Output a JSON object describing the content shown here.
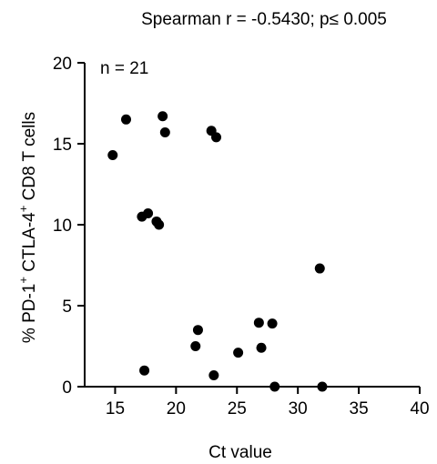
{
  "chart_data": {
    "type": "scatter",
    "title": "Spearman r = -0.5430; p≤ 0.005",
    "annotation": "n = 21",
    "xlabel": "Ct value",
    "ylabel": {
      "p1": "% PD-1",
      "sup1": "+",
      "p2": " CTLA-4",
      "sup2": "+",
      "p3": " CD8 T cells"
    },
    "xlim": [
      12.5,
      40
    ],
    "ylim": [
      0,
      20
    ],
    "x_ticks": [
      15,
      20,
      25,
      30,
      35,
      40
    ],
    "x_tick_labels": [
      "15",
      "20",
      "25",
      "30",
      "35",
      "40"
    ],
    "y_ticks": [
      0,
      5,
      10,
      15,
      20
    ],
    "y_tick_labels": [
      "0",
      "5",
      "10",
      "15",
      "20"
    ],
    "grid": false,
    "marker_color": "#000000",
    "points": [
      {
        "x": 14.8,
        "y": 14.3
      },
      {
        "x": 15.9,
        "y": 16.5
      },
      {
        "x": 17.2,
        "y": 10.5
      },
      {
        "x": 17.7,
        "y": 10.7
      },
      {
        "x": 18.4,
        "y": 10.2
      },
      {
        "x": 18.6,
        "y": 10.0
      },
      {
        "x": 18.9,
        "y": 16.7
      },
      {
        "x": 19.1,
        "y": 15.7
      },
      {
        "x": 17.4,
        "y": 1.0
      },
      {
        "x": 21.6,
        "y": 2.5
      },
      {
        "x": 21.8,
        "y": 3.5
      },
      {
        "x": 22.9,
        "y": 15.8
      },
      {
        "x": 23.3,
        "y": 15.4
      },
      {
        "x": 23.1,
        "y": 0.7
      },
      {
        "x": 25.1,
        "y": 2.1
      },
      {
        "x": 26.8,
        "y": 3.95
      },
      {
        "x": 27.0,
        "y": 2.4
      },
      {
        "x": 27.9,
        "y": 3.9
      },
      {
        "x": 28.1,
        "y": 0.0
      },
      {
        "x": 31.8,
        "y": 7.3
      },
      {
        "x": 32.0,
        "y": 0.0
      }
    ]
  }
}
